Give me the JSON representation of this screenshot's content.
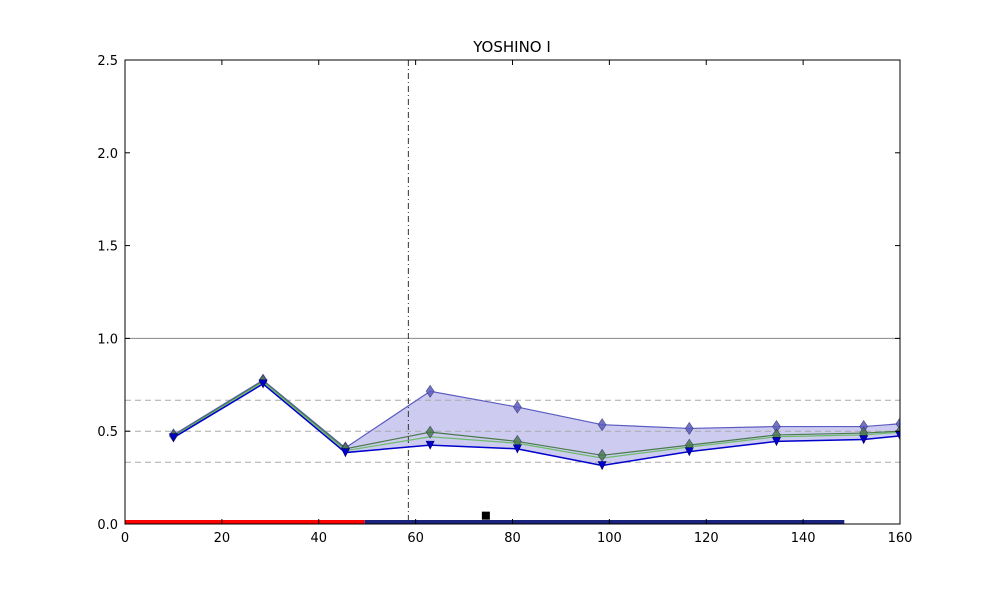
{
  "chart_data": {
    "type": "line",
    "title": "YOSHINO I",
    "xlabel": "",
    "ylabel": "",
    "xlim": [
      0,
      160
    ],
    "ylim": [
      0,
      2.5
    ],
    "x_ticks": [
      0,
      20,
      40,
      60,
      80,
      100,
      120,
      140,
      160
    ],
    "y_ticks": [
      0.0,
      0.5,
      1.0,
      1.5,
      2.0,
      2.5
    ],
    "x_tick_labels": [
      "0",
      "20",
      "40",
      "60",
      "80",
      "100",
      "120",
      "140",
      "160"
    ],
    "y_tick_labels": [
      "0.0",
      "0.5",
      "1.0",
      "1.5",
      "2.0",
      "2.5"
    ],
    "grid": false,
    "x": [
      10,
      28.5,
      45.5,
      63,
      81,
      98.5,
      116.5,
      134.5,
      152.5,
      160
    ],
    "series": [
      {
        "values": [
          0.48,
          0.775,
          0.41,
          0.715,
          0.63,
          0.535,
          0.515,
          0.525,
          0.525,
          0.54
        ],
        "color": "#5b5bc0",
        "marker": "diamond"
      },
      {
        "values": [
          0.475,
          0.77,
          0.405,
          0.495,
          0.445,
          0.37,
          0.425,
          0.48,
          0.49,
          0.5
        ],
        "color": "#4a7a4a",
        "marker": "diamond"
      },
      {
        "values": [
          0.47,
          0.765,
          0.395,
          0.47,
          0.435,
          0.355,
          0.415,
          0.47,
          0.48,
          0.495
        ],
        "color": "#6dbb6d",
        "marker": "none"
      },
      {
        "values": [
          0.465,
          0.755,
          0.385,
          0.425,
          0.405,
          0.315,
          0.39,
          0.445,
          0.455,
          0.475
        ],
        "color": "#0000cc",
        "marker": "triangle-down"
      }
    ],
    "band": {
      "upper_series": 0,
      "lower_series": 3,
      "color": "#c8c6ee"
    },
    "reference_lines": [
      {
        "y": 1.0,
        "style": "solid",
        "color": "#888888"
      },
      {
        "y": 0.667,
        "style": "dashed",
        "color": "#aaaaaa"
      },
      {
        "y": 0.5,
        "style": "dashed",
        "color": "#aaaaaa"
      },
      {
        "y": 0.333,
        "style": "dashed",
        "color": "#aaaaaa"
      }
    ],
    "vertical_line": {
      "x": 58.5,
      "style": "dashdot",
      "color": "#333333"
    },
    "baseline_bars": [
      {
        "x_start": 0,
        "x_end": 49.5,
        "color": "#ff0000"
      },
      {
        "x_start": 49.5,
        "x_end": 148.5,
        "color": "#1a237e"
      }
    ],
    "square_marker": {
      "x": 74.5,
      "y": 0.045,
      "color": "#000000"
    }
  }
}
